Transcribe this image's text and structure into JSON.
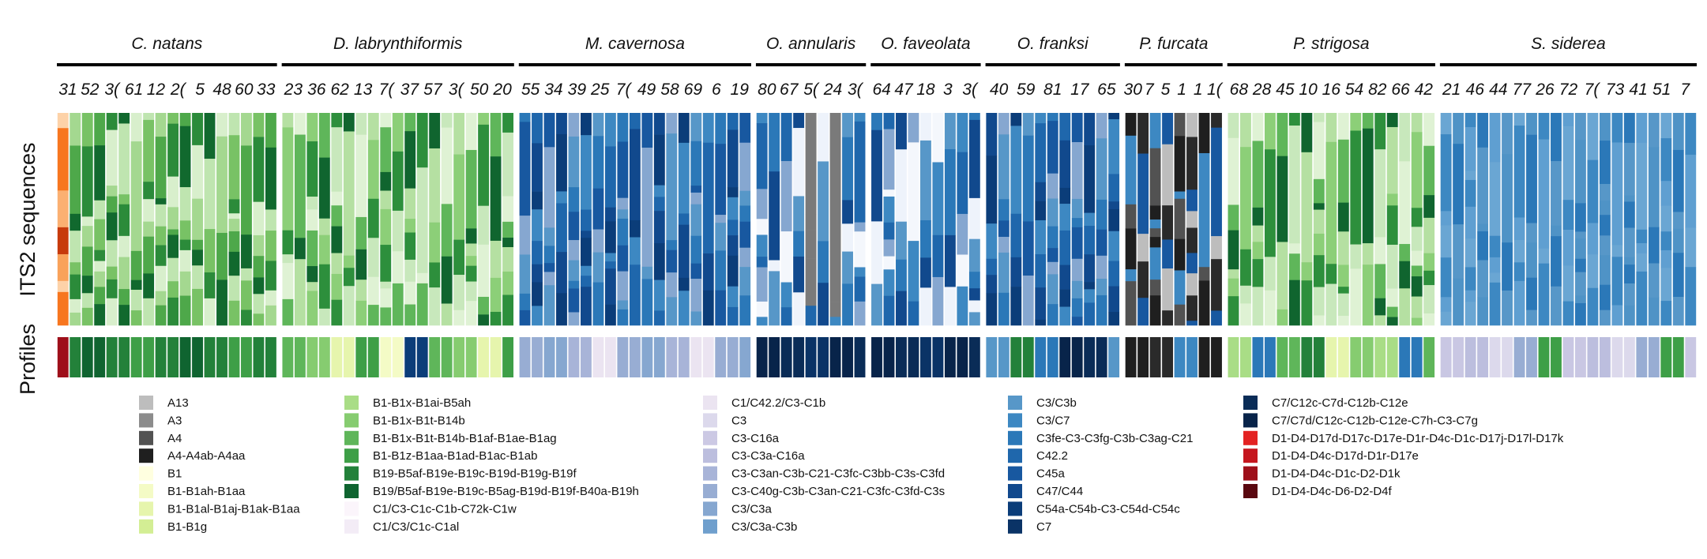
{
  "chart_data": {
    "type": "stacked-bar",
    "row_titles": [
      "ITS2 sequences",
      "Profiles"
    ],
    "panels": [
      {
        "name": "C. natans",
        "counts": [
          "31",
          "52",
          "3(",
          "61",
          "12",
          "2(",
          "5",
          "48",
          "60",
          "33"
        ],
        "bars": 18,
        "seq_palette": "green",
        "accent": "orange",
        "profile_palette": "dkgreen"
      },
      {
        "name": "D. labrynthiformis",
        "counts": [
          "23",
          "36",
          "62",
          "13",
          "7(",
          "37",
          "57",
          "3(",
          "50",
          "20"
        ],
        "bars": 19,
        "seq_palette": "ltgreen",
        "profile_palette": "mixgreen"
      },
      {
        "name": "M. cavernosa",
        "counts": [
          "55",
          "34",
          "39",
          "25",
          "7(",
          "49",
          "58",
          "69",
          "6",
          "19"
        ],
        "bars": 19,
        "seq_palette": "blue",
        "profile_palette": "ltblue"
      },
      {
        "name": "O. annularis",
        "counts": [
          "80",
          "67",
          "5(",
          "24",
          "3("
        ],
        "bars": 9,
        "seq_palette": "paleblue",
        "grey": true,
        "profile_palette": "navy"
      },
      {
        "name": "O. faveolata",
        "counts": [
          "64",
          "47",
          "18",
          "3",
          "3("
        ],
        "bars": 9,
        "seq_palette": "paleblue",
        "profile_palette": "navy"
      },
      {
        "name": "O. franksi",
        "counts": [
          "40",
          "59",
          "81",
          "17",
          "65"
        ],
        "bars": 11,
        "seq_palette": "blue",
        "profile_palette": "navymix"
      },
      {
        "name": "P. furcata",
        "counts": [
          "30",
          "7",
          "5",
          "1",
          "1",
          "1("
        ],
        "bars": 8,
        "seq_palette": "dark",
        "profile_palette": "black"
      },
      {
        "name": "P. strigosa",
        "counts": [
          "68",
          "28",
          "45",
          "10",
          "16",
          "54",
          "82",
          "66",
          "42"
        ],
        "bars": 17,
        "seq_palette": "ltgreen",
        "profile_palette": "mixgreen2"
      },
      {
        "name": "S. siderea",
        "counts": [
          "21",
          "46",
          "44",
          "77",
          "26",
          "72",
          "7(",
          "73",
          "41",
          "51",
          "7"
        ],
        "bars": 21,
        "seq_palette": "skyblue",
        "profile_palette": "lavender"
      }
    ],
    "legend": [
      {
        "label": "A13",
        "color": "#bdbdbd"
      },
      {
        "label": "A3",
        "color": "#8c8c8c"
      },
      {
        "label": "A4",
        "color": "#525252"
      },
      {
        "label": "A4-A4ab-A4aa",
        "color": "#1f1f1f"
      },
      {
        "label": "B1",
        "color": "#ffffe0"
      },
      {
        "label": "B1-B1ah-B1aa",
        "color": "#f4fbc6"
      },
      {
        "label": "B1-B1al-B1aj-B1ak-B1aa",
        "color": "#e6f5ad"
      },
      {
        "label": "B1-B1g",
        "color": "#d3ee94"
      },
      {
        "label": "B1-B1x-B1ai-B5ah",
        "color": "#a9dd86"
      },
      {
        "label": "B1-B1x-B1t-B14b",
        "color": "#86cc70"
      },
      {
        "label": "B1-B1x-B1t-B14b-B1af-B1ae-B1ag",
        "color": "#5fb65a"
      },
      {
        "label": "B1-B1z-B1aa-B1ad-B1ac-B1ab",
        "color": "#3e9f47"
      },
      {
        "label": "B19-B5af-B19e-B19c-B19d-B19g-B19f",
        "color": "#23813a"
      },
      {
        "label": "B19/B5af-B19e-B19c-B5ag-B19d-B19f-B40a-B19h",
        "color": "#0f6430"
      },
      {
        "label": "C1/C3-C1c-C1b-C72k-C1w",
        "color": "#fbf5fb"
      },
      {
        "label": "C1/C3/C1c-C1al",
        "color": "#f3ecf6"
      },
      {
        "label": "C1/C42.2/C3-C1b",
        "color": "#ebe4f1"
      },
      {
        "label": "C3",
        "color": "#dcd9ec"
      },
      {
        "label": "C3-C16a",
        "color": "#ccc9e4"
      },
      {
        "label": "C3-C3a-C16a",
        "color": "#bcbede"
      },
      {
        "label": "C3-C3an-C3b-C21-C3fc-C3bb-C3s-C3fd",
        "color": "#a8b4d8"
      },
      {
        "label": "C3-C40g-C3b-C3an-C21-C3fc-C3fd-C3s",
        "color": "#98add3"
      },
      {
        "label": "C3/C3a",
        "color": "#86a7d0"
      },
      {
        "label": "C3/C3a-C3b",
        "color": "#6f9fcd"
      },
      {
        "label": "C3/C3b",
        "color": "#5797c8"
      },
      {
        "label": "C3/C7",
        "color": "#3d88c2"
      },
      {
        "label": "C3fe-C3-C3fg-C3b-C3ag-C21",
        "color": "#2b78b8"
      },
      {
        "label": "C42.2",
        "color": "#1f67ac"
      },
      {
        "label": "C45a",
        "color": "#1858a0"
      },
      {
        "label": "C47/C44",
        "color": "#11498d"
      },
      {
        "label": "C54a-C54b-C3-C54d-C54c",
        "color": "#0b3d79"
      },
      {
        "label": "C7",
        "color": "#0a3366"
      },
      {
        "label": "C7/C12c-C7d-C12b-C12e",
        "color": "#0a2c57"
      },
      {
        "label": "C7/C7d/C12c-C12b-C12e-C7h-C3-C7g",
        "color": "#08244a"
      },
      {
        "label": "D1-D4-D17d-D17c-D17e-D1r-D4c-D1c-D17j-D17l-D17k",
        "color": "#e32222"
      },
      {
        "label": "D1-D4-D4c-D17d-D1r-D17e",
        "color": "#c5161e"
      },
      {
        "label": "D1-D4-D4c-D1c-D2-D1k",
        "color": "#9e0f1a"
      },
      {
        "label": "D1-D4-D4c-D6-D2-D4f",
        "color": "#5a0810"
      }
    ],
    "legend_columns": [
      8,
      8,
      8,
      8,
      6
    ]
  }
}
